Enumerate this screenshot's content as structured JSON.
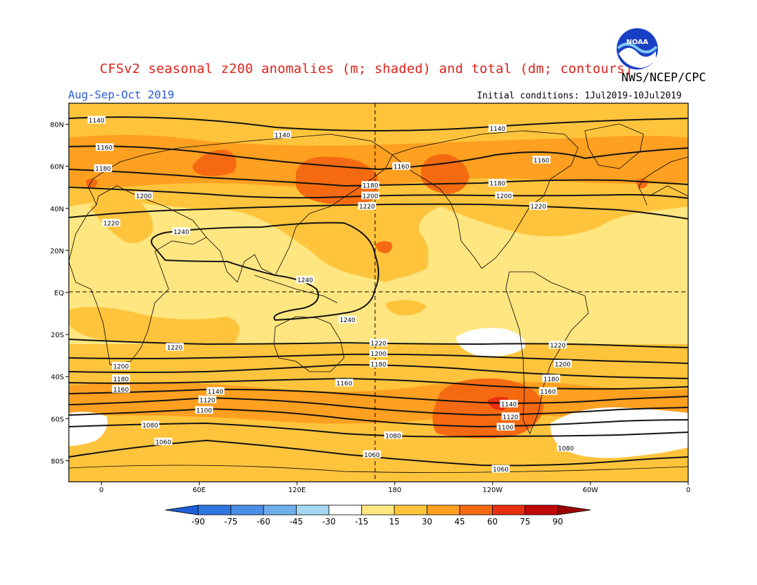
{
  "header": {
    "title": "CFSv2 seasonal z200 anomalies (m; shaded) and total (dm; contours)",
    "agency": "NWS/NCEP/CPC",
    "period": "Aug-Sep-Oct 2019",
    "initial_conditions": "Initial conditions: 1Jul2019-10Jul2019",
    "logo_text": "NOAA"
  },
  "map": {
    "lat_labels": [
      "80N",
      "60N",
      "40N",
      "20N",
      "EQ",
      "20S",
      "40S",
      "60S",
      "80S"
    ],
    "lon_labels": [
      "0",
      "60E",
      "120E",
      "180",
      "120W",
      "60W",
      "0"
    ],
    "contour_labels": [
      {
        "text": "1140",
        "lon": -3,
        "lat": 82
      },
      {
        "text": "1140",
        "lon": 111,
        "lat": 75
      },
      {
        "text": "1140",
        "lon": 243,
        "lat": 78
      },
      {
        "text": "1160",
        "lon": 2,
        "lat": 69
      },
      {
        "text": "1160",
        "lon": 184,
        "lat": 60
      },
      {
        "text": "1160",
        "lon": 270,
        "lat": 63
      },
      {
        "text": "1180",
        "lon": 1,
        "lat": 59
      },
      {
        "text": "1180",
        "lon": 165,
        "lat": 51
      },
      {
        "text": "1180",
        "lon": 243,
        "lat": 52
      },
      {
        "text": "1200",
        "lon": 26,
        "lat": 46
      },
      {
        "text": "1200",
        "lon": 165,
        "lat": 46
      },
      {
        "text": "1200",
        "lon": 247,
        "lat": 46
      },
      {
        "text": "1220",
        "lon": 6,
        "lat": 33
      },
      {
        "text": "1220",
        "lon": 163,
        "lat": 41
      },
      {
        "text": "1220",
        "lon": 268,
        "lat": 41
      },
      {
        "text": "1240",
        "lon": 49,
        "lat": 29
      },
      {
        "text": "1240",
        "lon": 125,
        "lat": 6
      },
      {
        "text": "1240",
        "lon": 151,
        "lat": -13
      },
      {
        "text": "1220",
        "lon": 45,
        "lat": -26
      },
      {
        "text": "1220",
        "lon": 170,
        "lat": -24
      },
      {
        "text": "1220",
        "lon": 280,
        "lat": -25
      },
      {
        "text": "1200",
        "lon": 12,
        "lat": -35
      },
      {
        "text": "1200",
        "lon": 170,
        "lat": -29
      },
      {
        "text": "1200",
        "lon": 283,
        "lat": -34
      },
      {
        "text": "1180",
        "lon": 12,
        "lat": -41
      },
      {
        "text": "1180",
        "lon": 170,
        "lat": -34
      },
      {
        "text": "1180",
        "lon": 276,
        "lat": -41
      },
      {
        "text": "1160",
        "lon": 12,
        "lat": -46
      },
      {
        "text": "1160",
        "lon": 149,
        "lat": -43
      },
      {
        "text": "1160",
        "lon": 274,
        "lat": -47
      },
      {
        "text": "1140",
        "lon": 70,
        "lat": -47
      },
      {
        "text": "1140",
        "lon": 250,
        "lat": -53
      },
      {
        "text": "1120",
        "lon": 65,
        "lat": -51
      },
      {
        "text": "1120",
        "lon": 251,
        "lat": -59
      },
      {
        "text": "1100",
        "lon": 63,
        "lat": -56
      },
      {
        "text": "1100",
        "lon": 248,
        "lat": -64
      },
      {
        "text": "1080",
        "lon": 30,
        "lat": -63
      },
      {
        "text": "1080",
        "lon": 179,
        "lat": -68
      },
      {
        "text": "1080",
        "lon": 285,
        "lat": -74
      },
      {
        "text": "1060",
        "lon": 38,
        "lat": -71
      },
      {
        "text": "1060",
        "lon": 166,
        "lat": -77
      },
      {
        "text": "1060",
        "lon": 245,
        "lat": -84
      }
    ]
  },
  "colorbar": {
    "labels": [
      "-90",
      "-75",
      "-60",
      "-45",
      "-30",
      "-15",
      "15",
      "30",
      "45",
      "60",
      "75",
      "90"
    ],
    "colors": [
      "#1c5fd8",
      "#2f77e0",
      "#4a8ee6",
      "#6fb0ec",
      "#a5d8f2",
      "#ffffff",
      "#ffe680",
      "#ffc43c",
      "#ffa020",
      "#f56a10",
      "#e83010",
      "#c00808",
      "#9a0000"
    ]
  },
  "colors": {
    "title": "#e0201a",
    "period": "#2a5ad6",
    "shade_15": "#ffe680",
    "shade_30": "#ffc43c",
    "shade_45": "#ffa020",
    "shade_60": "#f56a10",
    "shade_75": "#e83010"
  }
}
